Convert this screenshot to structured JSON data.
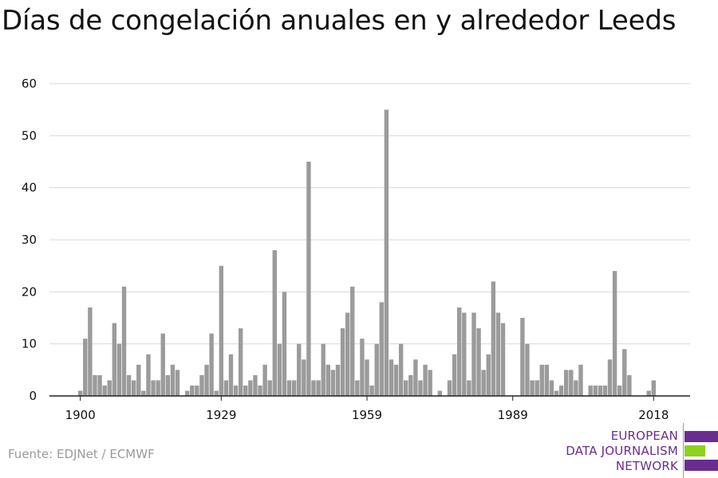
{
  "title": "Días de congelación anuales en y alrededor Leeds",
  "source": "Fuente: EDJNet / ECMWF",
  "logo": {
    "lines": [
      "EUROPEAN",
      "DATA JOURNALISM",
      "NETWORK"
    ],
    "colors": {
      "primary": "#6b2c91",
      "accent": "#8ed11f"
    }
  },
  "colors": {
    "bar": "#9b9b9b",
    "grid": "#d9d9d9",
    "axis": "#222222",
    "text": "#111111",
    "source": "#9a9a9a"
  },
  "chart_data": {
    "type": "bar",
    "title": "Días de congelación anuales en y alrededor Leeds",
    "xlabel": "",
    "ylabel": "",
    "ylim": [
      0,
      60
    ],
    "yticks": [
      0,
      10,
      20,
      30,
      40,
      50,
      60
    ],
    "xticks": [
      1900,
      1929,
      1959,
      1989,
      2018
    ],
    "grid": true,
    "x": [
      1900,
      1901,
      1902,
      1903,
      1904,
      1905,
      1906,
      1907,
      1908,
      1909,
      1910,
      1911,
      1912,
      1913,
      1914,
      1915,
      1916,
      1917,
      1918,
      1919,
      1920,
      1921,
      1922,
      1923,
      1924,
      1925,
      1926,
      1927,
      1928,
      1929,
      1930,
      1931,
      1932,
      1933,
      1934,
      1935,
      1936,
      1937,
      1938,
      1939,
      1940,
      1941,
      1942,
      1943,
      1944,
      1945,
      1946,
      1947,
      1948,
      1949,
      1950,
      1951,
      1952,
      1953,
      1954,
      1955,
      1956,
      1957,
      1958,
      1959,
      1960,
      1961,
      1962,
      1963,
      1964,
      1965,
      1966,
      1967,
      1968,
      1969,
      1970,
      1971,
      1972,
      1973,
      1974,
      1975,
      1976,
      1977,
      1978,
      1979,
      1980,
      1981,
      1982,
      1983,
      1984,
      1985,
      1986,
      1987,
      1988,
      1989,
      1990,
      1991,
      1992,
      1993,
      1994,
      1995,
      1996,
      1997,
      1998,
      1999,
      2000,
      2001,
      2002,
      2003,
      2004,
      2005,
      2006,
      2007,
      2008,
      2009,
      2010,
      2011,
      2012,
      2013,
      2014,
      2015,
      2016,
      2017,
      2018
    ],
    "values": [
      1,
      11,
      17,
      4,
      4,
      2,
      3,
      14,
      10,
      21,
      4,
      3,
      6,
      1,
      8,
      3,
      3,
      12,
      4,
      6,
      5,
      0,
      1,
      2,
      2,
      4,
      6,
      12,
      1,
      25,
      3,
      8,
      2,
      13,
      2,
      3,
      4,
      2,
      6,
      3,
      28,
      10,
      20,
      3,
      3,
      10,
      7,
      45,
      3,
      3,
      10,
      6,
      5,
      6,
      13,
      16,
      21,
      3,
      11,
      7,
      2,
      10,
      18,
      55,
      7,
      6,
      10,
      3,
      4,
      7,
      3,
      6,
      5,
      0,
      1,
      0,
      3,
      8,
      17,
      16,
      3,
      16,
      13,
      5,
      8,
      22,
      16,
      14,
      0,
      0,
      0,
      15,
      10,
      3,
      3,
      6,
      6,
      3,
      1,
      2,
      5,
      5,
      3,
      6,
      0,
      2,
      2,
      2,
      2,
      7,
      24,
      2,
      9,
      4,
      0,
      0,
      0,
      1,
      3
    ]
  }
}
